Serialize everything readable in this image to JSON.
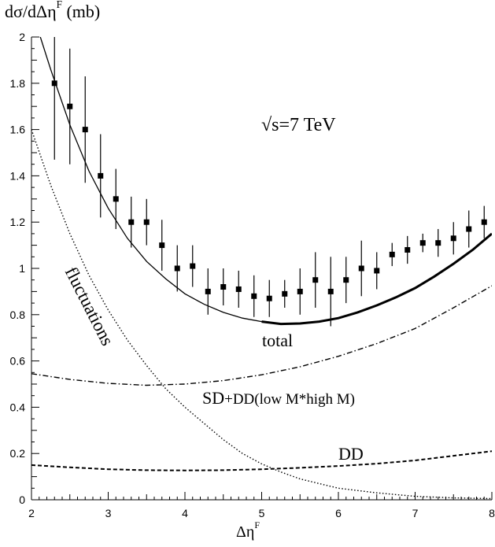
{
  "chart_data": {
    "type": "line",
    "ylabel_main": "dσ/dΔη",
    "ylabel_sup": "F",
    "ylabel_unit": " (mb)",
    "xlabel_main": "Δη",
    "xlabel_sup": "F",
    "xlim": [
      2,
      8
    ],
    "ylim": [
      0,
      2
    ],
    "x_ticks": [
      "2",
      "3",
      "4",
      "5",
      "6",
      "7",
      "8"
    ],
    "y_ticks": [
      "0",
      "0.2",
      "0.4",
      "0.6",
      "0.8",
      "1",
      "1.2",
      "1.4",
      "1.6",
      "1.8",
      "2"
    ],
    "annotations": {
      "energy": "√s=7 TeV",
      "total": "total",
      "fluctuations": "fluctuations",
      "sd_main": "SD",
      "sd_rest": "+DD(low M*high M)",
      "dd": "DD"
    },
    "data_points": {
      "x": [
        2.3,
        2.5,
        2.7,
        2.9,
        3.1,
        3.3,
        3.5,
        3.7,
        3.9,
        4.1,
        4.3,
        4.5,
        4.7,
        4.9,
        5.1,
        5.3,
        5.5,
        5.7,
        5.9,
        6.1,
        6.3,
        6.5,
        6.7,
        6.9,
        7.1,
        7.3,
        7.5,
        7.7,
        7.9
      ],
      "y": [
        1.8,
        1.7,
        1.6,
        1.4,
        1.3,
        1.2,
        1.2,
        1.1,
        1.0,
        1.01,
        0.9,
        0.92,
        0.91,
        0.88,
        0.87,
        0.89,
        0.9,
        0.95,
        0.9,
        0.95,
        1.0,
        0.99,
        1.06,
        1.08,
        1.11,
        1.11,
        1.13,
        1.17,
        1.2
      ],
      "err": [
        0.33,
        0.25,
        0.23,
        0.18,
        0.13,
        0.11,
        0.1,
        0.11,
        0.1,
        0.09,
        0.1,
        0.08,
        0.08,
        0.09,
        0.08,
        0.06,
        0.1,
        0.12,
        0.15,
        0.1,
        0.12,
        0.08,
        0.05,
        0.06,
        0.04,
        0.06,
        0.07,
        0.08,
        0.07
      ]
    },
    "series": [
      {
        "name": "total",
        "x": [
          2.0,
          2.25,
          2.5,
          2.75,
          3.0,
          3.25,
          3.5,
          3.75,
          4.0,
          4.25,
          4.5,
          4.75,
          5.0,
          5.25,
          5.5,
          5.75,
          6.0,
          6.25,
          6.5,
          6.75,
          7.0,
          7.25,
          7.5,
          7.75,
          8.0
        ],
        "y": [
          2.12,
          1.86,
          1.62,
          1.42,
          1.26,
          1.13,
          1.03,
          0.955,
          0.89,
          0.845,
          0.81,
          0.785,
          0.77,
          0.76,
          0.762,
          0.77,
          0.785,
          0.81,
          0.84,
          0.875,
          0.915,
          0.965,
          1.02,
          1.08,
          1.15
        ]
      },
      {
        "name": "fluctuations",
        "x": [
          2.0,
          2.25,
          2.5,
          2.75,
          3.0,
          3.25,
          3.5,
          3.75,
          4.0,
          4.25,
          4.5,
          4.75,
          5.0,
          5.25,
          5.5,
          5.75,
          6.0,
          6.5,
          7.0,
          7.5,
          8.0
        ],
        "y": [
          1.6,
          1.36,
          1.15,
          0.97,
          0.82,
          0.69,
          0.58,
          0.48,
          0.4,
          0.33,
          0.26,
          0.2,
          0.155,
          0.12,
          0.09,
          0.07,
          0.05,
          0.03,
          0.015,
          0.008,
          0.005
        ]
      },
      {
        "name": "SD+DD(low M*high M)",
        "x": [
          2.0,
          2.5,
          3.0,
          3.5,
          4.0,
          4.5,
          5.0,
          5.5,
          6.0,
          6.5,
          7.0,
          7.5,
          8.0
        ],
        "y": [
          0.545,
          0.52,
          0.503,
          0.495,
          0.5,
          0.515,
          0.54,
          0.575,
          0.62,
          0.675,
          0.74,
          0.83,
          0.925
        ]
      },
      {
        "name": "DD",
        "x": [
          2.0,
          2.5,
          3.0,
          3.5,
          4.0,
          4.5,
          5.0,
          5.5,
          6.0,
          6.5,
          7.0,
          7.5,
          8.0
        ],
        "y": [
          0.15,
          0.14,
          0.132,
          0.128,
          0.127,
          0.128,
          0.132,
          0.138,
          0.146,
          0.156,
          0.17,
          0.19,
          0.21
        ]
      }
    ],
    "colors": {
      "axis": "#000000",
      "line": "#000000",
      "background": "#ffffff"
    },
    "grid": false,
    "legend": "none"
  }
}
